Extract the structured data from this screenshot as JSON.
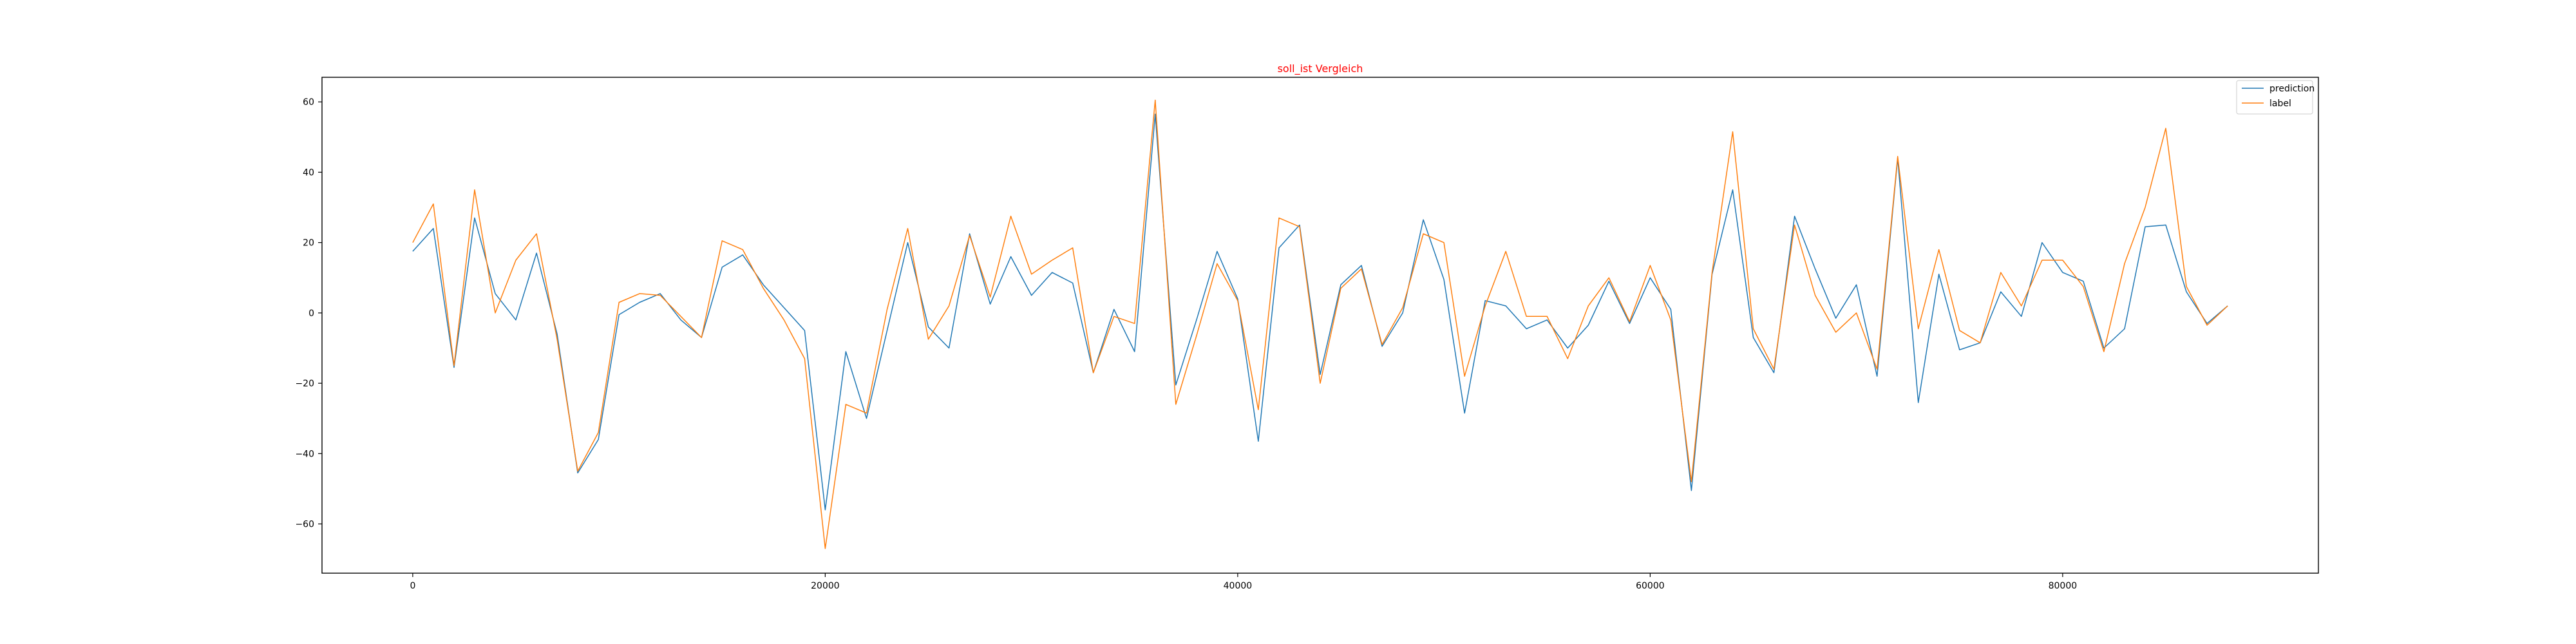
{
  "chart_data": {
    "type": "line",
    "title": "soll_ist Vergleich",
    "title_color": "#ff0000",
    "xlabel": "",
    "ylabel": "",
    "xlim": [
      -4400,
      92400
    ],
    "ylim": [
      -74,
      67
    ],
    "xticks": [
      0,
      20000,
      40000,
      60000,
      80000
    ],
    "yticks": [
      -60,
      -40,
      -20,
      0,
      20,
      40,
      60
    ],
    "xtick_labels": [
      "0",
      "20000",
      "40000",
      "60000",
      "80000"
    ],
    "ytick_labels": [
      "−60",
      "−40",
      "−20",
      "0",
      "20",
      "40",
      "60"
    ],
    "grid": false,
    "legend_position": "top-right",
    "x": [
      0,
      1000,
      2000,
      3000,
      4000,
      5000,
      6000,
      7000,
      8000,
      9000,
      10000,
      11000,
      12000,
      13000,
      14000,
      15000,
      16000,
      17000,
      18000,
      19000,
      20000,
      21000,
      22000,
      23000,
      24000,
      25000,
      26000,
      27000,
      28000,
      29000,
      30000,
      31000,
      32000,
      33000,
      34000,
      35000,
      36000,
      37000,
      38000,
      39000,
      40000,
      41000,
      42000,
      43000,
      44000,
      45000,
      46000,
      47000,
      48000,
      49000,
      50000,
      51000,
      52000,
      53000,
      54000,
      55000,
      56000,
      57000,
      58000,
      59000,
      60000,
      61000,
      62000,
      63000,
      64000,
      65000,
      66000,
      67000,
      68000,
      69000,
      70000,
      71000,
      72000,
      73000,
      74000,
      75000,
      76000,
      77000,
      78000,
      79000,
      80000,
      81000,
      82000,
      83000,
      84000,
      85000,
      86000,
      87000,
      88000
    ],
    "series": [
      {
        "name": "prediction",
        "color": "#1f77b4",
        "values": [
          17.5,
          24,
          -15.5,
          27,
          5.5,
          -2,
          17,
          -6,
          -45.5,
          -36,
          -0.5,
          3,
          5.5,
          -2,
          -7,
          13,
          16.5,
          8,
          1.5,
          -5,
          -56,
          -11,
          -30,
          -5,
          20,
          -4,
          -10,
          22.5,
          2.5,
          16,
          5,
          11.5,
          8.5,
          -17,
          1,
          -11,
          56.5,
          -20.5,
          -2,
          17.5,
          4,
          -36.5,
          18.5,
          25,
          -17.5,
          8,
          13.5,
          -9.5,
          0,
          26.5,
          9.5,
          -28.5,
          3.5,
          2,
          -4.5,
          -2,
          -10,
          -3.5,
          9,
          -3,
          10,
          1,
          -50.5,
          11,
          35,
          -7,
          -17,
          27.5,
          12.5,
          -1.5,
          8,
          -18,
          44,
          -25.5,
          11,
          -10.5,
          -8.5,
          6,
          -1,
          20,
          11.5,
          9,
          -10,
          -4.5,
          24.5,
          25,
          6,
          -3,
          2
        ]
      },
      {
        "name": "label",
        "color": "#ff7f0e",
        "values": [
          20,
          31,
          -15,
          35,
          0,
          15,
          22.5,
          -7.5,
          -45,
          -34,
          3,
          5.5,
          5,
          -1,
          -7,
          20.5,
          18,
          7,
          -2,
          -13,
          -67,
          -26,
          -28.5,
          1,
          24,
          -7.5,
          2,
          22,
          4.5,
          27.5,
          11,
          15,
          18.5,
          -17,
          -1,
          -3,
          60.5,
          -26,
          -6.5,
          14,
          3.5,
          -27.5,
          27,
          24.5,
          -20,
          7,
          12.5,
          -9,
          1.5,
          22.5,
          20,
          -18,
          2,
          17.5,
          -1,
          -1,
          -13,
          2,
          10,
          -2.5,
          13.5,
          -2,
          -48,
          11.5,
          51.5,
          -4.5,
          -16,
          25,
          5,
          -5.5,
          0,
          -16,
          44.5,
          -4.5,
          18,
          -5,
          -8.5,
          11.5,
          2,
          15,
          15,
          7.5,
          -11,
          14,
          30,
          52.5,
          7.5,
          -3.5,
          2
        ]
      }
    ]
  }
}
